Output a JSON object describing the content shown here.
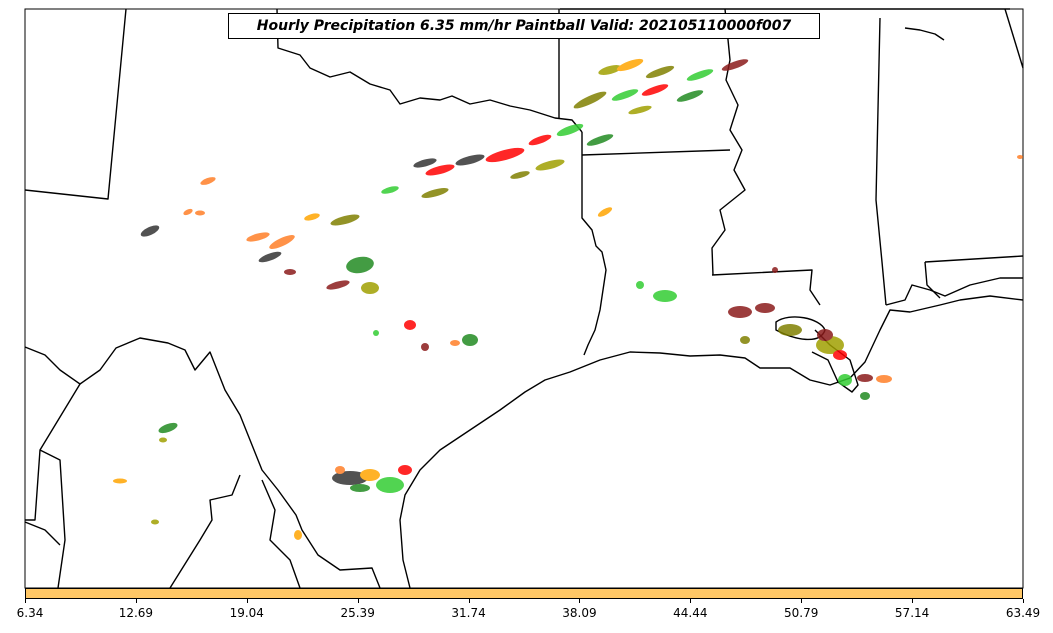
{
  "title": "Hourly Precipitation 6.35 mm/hr Paintball Valid: 202105110000f007",
  "colorbar": {
    "color": "#ffc766",
    "ticks": [
      "6.34",
      "12.69",
      "19.04",
      "25.39",
      "31.74",
      "38.09",
      "44.44",
      "50.79",
      "57.14",
      "63.49"
    ]
  },
  "map": {
    "region": "South-central United States and northern Mexico (Texas, Oklahoma, Arkansas, Louisiana, Mississippi)",
    "features": [
      "state-borders",
      "country-border",
      "coastline"
    ]
  },
  "legend_palette": {
    "colors": [
      "#ff0000",
      "#228b22",
      "#32cd32",
      "#808000",
      "#a0a000",
      "#ff7f27",
      "#ffa500",
      "#8b1a1a",
      "#333333"
    ]
  },
  "chart_data": {
    "type": "scatter",
    "title": "Hourly Precipitation 6.35 mm/hr Paintball Valid: 202105110000f007",
    "xlabel": "",
    "ylabel": "",
    "xlim": [
      6.34,
      63.49
    ],
    "categories": [
      "6.34",
      "12.69",
      "19.04",
      "25.39",
      "31.74",
      "38.09",
      "44.44",
      "50.79",
      "57.14",
      "63.49"
    ],
    "series": [
      {
        "values": [
          1,
          1,
          1,
          1,
          1,
          1,
          1,
          1,
          1,
          1
        ]
      }
    ]
  }
}
